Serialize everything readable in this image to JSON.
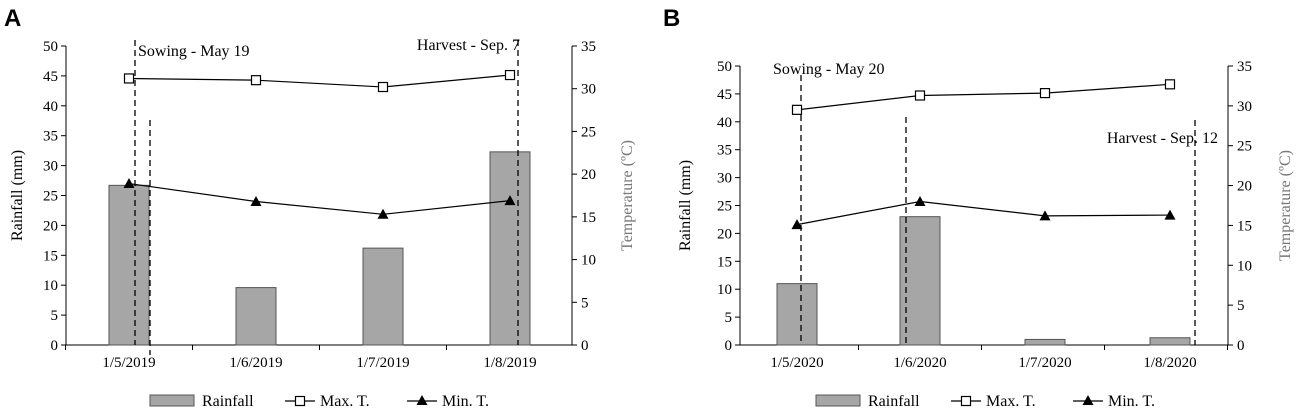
{
  "chart_data": [
    {
      "panel": "A",
      "type": "bar+line",
      "categories": [
        "1/5/2019",
        "1/6/2019",
        "1/7/2019",
        "1/8/2019"
      ],
      "ylabel": "Rainfall  (mm)",
      "ylim": [
        0,
        50
      ],
      "yticks": [
        0,
        5,
        10,
        15,
        20,
        25,
        30,
        35,
        40,
        45,
        50
      ],
      "y2label": "Temperature (ºC)",
      "y2lim": [
        0,
        35
      ],
      "y2ticks": [
        0,
        5,
        10,
        15,
        20,
        25,
        30,
        35
      ],
      "series": [
        {
          "name": "Rainfall",
          "kind": "bar",
          "axis": "left",
          "values": [
            26.7,
            9.6,
            16.2,
            32.3
          ]
        },
        {
          "name": "Max. T.",
          "kind": "line",
          "marker": "open-square",
          "axis": "right",
          "values": [
            31.2,
            31.0,
            30.2,
            31.6
          ]
        },
        {
          "name": "Min. T.",
          "kind": "line",
          "marker": "filled-triangle",
          "axis": "right",
          "values": [
            18.9,
            16.8,
            15.3,
            16.9
          ]
        }
      ],
      "annotations": [
        {
          "text": "Sowing - May 19",
          "date_index": 0
        },
        {
          "text": "Harvest - Sep. 7",
          "date_index": 3
        }
      ]
    },
    {
      "panel": "B",
      "type": "bar+line",
      "categories": [
        "1/5/2020",
        "1/6/2020",
        "1/7/2020",
        "1/8/2020"
      ],
      "ylabel": "Rainfall  (mm)",
      "ylim": [
        0,
        50
      ],
      "yticks": [
        0,
        5,
        10,
        15,
        20,
        25,
        30,
        35,
        40,
        45,
        50
      ],
      "y2label": "Temperature (ºC)",
      "y2lim": [
        0,
        35
      ],
      "y2ticks": [
        0,
        5,
        10,
        15,
        20,
        25,
        30,
        35
      ],
      "series": [
        {
          "name": "Rainfall",
          "kind": "bar",
          "axis": "left",
          "values": [
            11.0,
            23.0,
            1.0,
            1.3
          ]
        },
        {
          "name": "Max. T.",
          "kind": "line",
          "marker": "open-square",
          "axis": "right",
          "values": [
            29.5,
            31.3,
            31.6,
            32.7
          ]
        },
        {
          "name": "Min. T.",
          "kind": "line",
          "marker": "filled-triangle",
          "axis": "right",
          "values": [
            15.1,
            18.0,
            16.2,
            16.3
          ]
        }
      ],
      "annotations": [
        {
          "text": "Sowing - May 20",
          "date_index": 0
        },
        {
          "text": "Harvest - Sep. 12",
          "date_index": 3
        }
      ]
    }
  ]
}
